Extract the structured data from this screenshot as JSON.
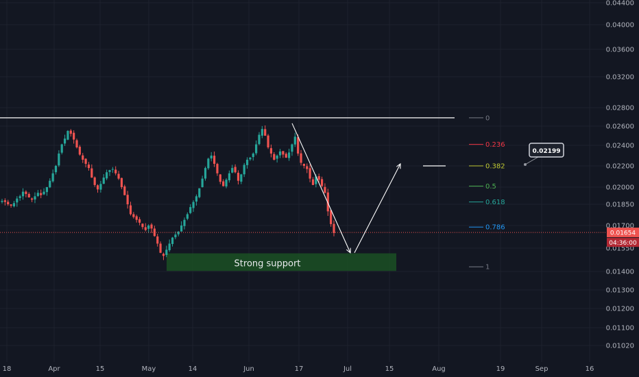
{
  "colors": {
    "background": "#131722",
    "grid": "#1e222d",
    "axis_text": "#b2b5be",
    "candle_up": "#26a69a",
    "candle_down": "#ef5350",
    "resistance": "#ffffff",
    "support_zone": "#1b4d24",
    "price_line": "#ef5350",
    "arrow": "#ffffff"
  },
  "chart_data": {
    "type": "candlestick",
    "title": "",
    "xlabel": "",
    "ylabel": "",
    "ylim": [
      0.0102,
      0.0444
    ],
    "y_axis_labels": [
      "0.04400",
      "0.04000",
      "0.03600",
      "0.03200",
      "0.02800",
      "0.02600",
      "0.02400",
      "0.02200",
      "0.02000",
      "0.01850",
      "0.01700",
      "0.01550",
      "0.01400",
      "0.01300",
      "0.01200",
      "0.01100",
      "0.01020"
    ],
    "y_axis_values": [
      0.044,
      0.04,
      0.036,
      0.032,
      0.028,
      0.026,
      0.024,
      0.022,
      0.02,
      0.0185,
      0.017,
      0.0155,
      0.014,
      0.013,
      0.012,
      0.011,
      0.0102
    ],
    "x_axis_labels": [
      "18",
      "Apr",
      "15",
      "May",
      "14",
      "Jun",
      "17",
      "Jul",
      "15",
      "Aug",
      "19",
      "Sep",
      "16"
    ],
    "price_path": [
      0.0188,
      0.0187,
      0.0185,
      0.0184,
      0.0186,
      0.019,
      0.0192,
      0.0196,
      0.0194,
      0.0191,
      0.0189,
      0.0192,
      0.0195,
      0.0193,
      0.0196,
      0.02,
      0.0206,
      0.0213,
      0.022,
      0.0232,
      0.0241,
      0.0247,
      0.0255,
      0.0252,
      0.0246,
      0.0238,
      0.0231,
      0.0226,
      0.0222,
      0.0218,
      0.0209,
      0.0202,
      0.0198,
      0.0203,
      0.0209,
      0.0214,
      0.0216,
      0.0217,
      0.0213,
      0.0208,
      0.02,
      0.0193,
      0.0185,
      0.0178,
      0.0176,
      0.0174,
      0.0172,
      0.0169,
      0.0167,
      0.017,
      0.0168,
      0.0163,
      0.0158,
      0.0152,
      0.015,
      0.0154,
      0.0158,
      0.0162,
      0.0164,
      0.0166,
      0.017,
      0.0174,
      0.0178,
      0.0183,
      0.0187,
      0.0192,
      0.0199,
      0.0208,
      0.0218,
      0.0227,
      0.023,
      0.0222,
      0.0213,
      0.0205,
      0.0201,
      0.0207,
      0.0213,
      0.0218,
      0.0214,
      0.0206,
      0.0212,
      0.0221,
      0.0226,
      0.0228,
      0.0232,
      0.0241,
      0.0251,
      0.0257,
      0.025,
      0.0238,
      0.0232,
      0.0226,
      0.023,
      0.0234,
      0.0231,
      0.0228,
      0.0233,
      0.0241,
      0.0249,
      0.0232,
      0.0223,
      0.022,
      0.0217,
      0.0208,
      0.0202,
      0.021,
      0.0207,
      0.0201,
      0.0195,
      0.018,
      0.0171,
      0.0165
    ],
    "resistance_level": 0.0269,
    "support_zone": [
      0.0143,
      0.0149
    ],
    "support_label": "Strong support",
    "current_price": 0.01654,
    "current_price_label": "0.01654",
    "countdown_label": "04:36:00",
    "target_callout": "0.02199",
    "fib_levels": [
      {
        "label": "0",
        "value": 0.0269,
        "color": "#787b86"
      },
      {
        "label": "0.236",
        "value": 0.0241,
        "color": "#f23645"
      },
      {
        "label": "0.382",
        "value": 0.022,
        "color": "#c0ca33"
      },
      {
        "label": "0.5",
        "value": 0.0201,
        "color": "#4caf50"
      },
      {
        "label": "0.618",
        "value": 0.0187,
        "color": "#26a69a"
      },
      {
        "label": "0.786",
        "value": 0.0169,
        "color": "#2196f3"
      },
      {
        "label": "1",
        "value": 0.0143,
        "color": "#787b86"
      }
    ]
  }
}
